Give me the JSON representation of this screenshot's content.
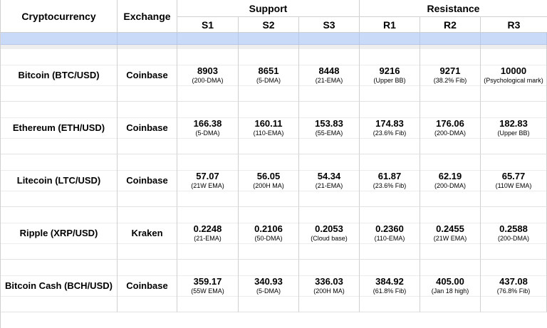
{
  "headers": {
    "crypto": "Cryptocurrency",
    "exchange": "Exchange",
    "support": "Support",
    "resistance": "Resistance",
    "s1": "S1",
    "s2": "S2",
    "s3": "S3",
    "r1": "R1",
    "r2": "R2",
    "r3": "R3"
  },
  "rows": [
    {
      "name": "Bitcoin (BTC/USD)",
      "exchange": "Coinbase",
      "levels": [
        {
          "value": "8903",
          "note": "(200-DMA)"
        },
        {
          "value": "8651",
          "note": "(5-DMA)"
        },
        {
          "value": "8448",
          "note": "(21-EMA)"
        },
        {
          "value": "9216",
          "note": "(Upper BB)"
        },
        {
          "value": "9271",
          "note": "(38.2% Fib)"
        },
        {
          "value": "10000",
          "note": "(Psychological mark)"
        }
      ]
    },
    {
      "name": "Ethereum (ETH/USD)",
      "exchange": "Coinbase",
      "levels": [
        {
          "value": "166.38",
          "note": "(5-DMA)"
        },
        {
          "value": "160.11",
          "note": "(110-EMA)"
        },
        {
          "value": "153.83",
          "note": "(55-EMA)"
        },
        {
          "value": "174.83",
          "note": "(23.6% Fib)"
        },
        {
          "value": "176.06",
          "note": "(200-DMA)"
        },
        {
          "value": "182.83",
          "note": "(Upper BB)"
        }
      ]
    },
    {
      "name": "Litecoin (LTC/USD)",
      "exchange": "Coinbase",
      "levels": [
        {
          "value": "57.07",
          "note": "(21W EMA)"
        },
        {
          "value": "56.05",
          "note": "(200H MA)"
        },
        {
          "value": "54.34",
          "note": "(21-EMA)"
        },
        {
          "value": "61.87",
          "note": "(23.6% Fib)"
        },
        {
          "value": "62.19",
          "note": "(200-DMA)"
        },
        {
          "value": "65.77",
          "note": "(110W EMA)"
        }
      ]
    },
    {
      "name": "Ripple (XRP/USD)",
      "exchange": "Kraken",
      "levels": [
        {
          "value": "0.2248",
          "note": "(21-EMA)"
        },
        {
          "value": "0.2106",
          "note": "(50-DMA)"
        },
        {
          "value": "0.2053",
          "note": "(Cloud base)"
        },
        {
          "value": "0.2360",
          "note": "(110-EMA)"
        },
        {
          "value": "0.2455",
          "note": "(21W EMA)"
        },
        {
          "value": "0.2588",
          "note": "(200-DMA)"
        }
      ]
    },
    {
      "name": "Bitcoin Cash (BCH/USD)",
      "exchange": "Coinbase",
      "levels": [
        {
          "value": "359.17",
          "note": "(55W EMA)"
        },
        {
          "value": "340.93",
          "note": "(5-DMA)"
        },
        {
          "value": "336.03",
          "note": "(200H MA)"
        },
        {
          "value": "384.92",
          "note": "(61.8% Fib)"
        },
        {
          "value": "405.00",
          "note": "(Jan 18 high)"
        },
        {
          "value": "437.08",
          "note": "(76.8% Fib)"
        }
      ]
    }
  ]
}
